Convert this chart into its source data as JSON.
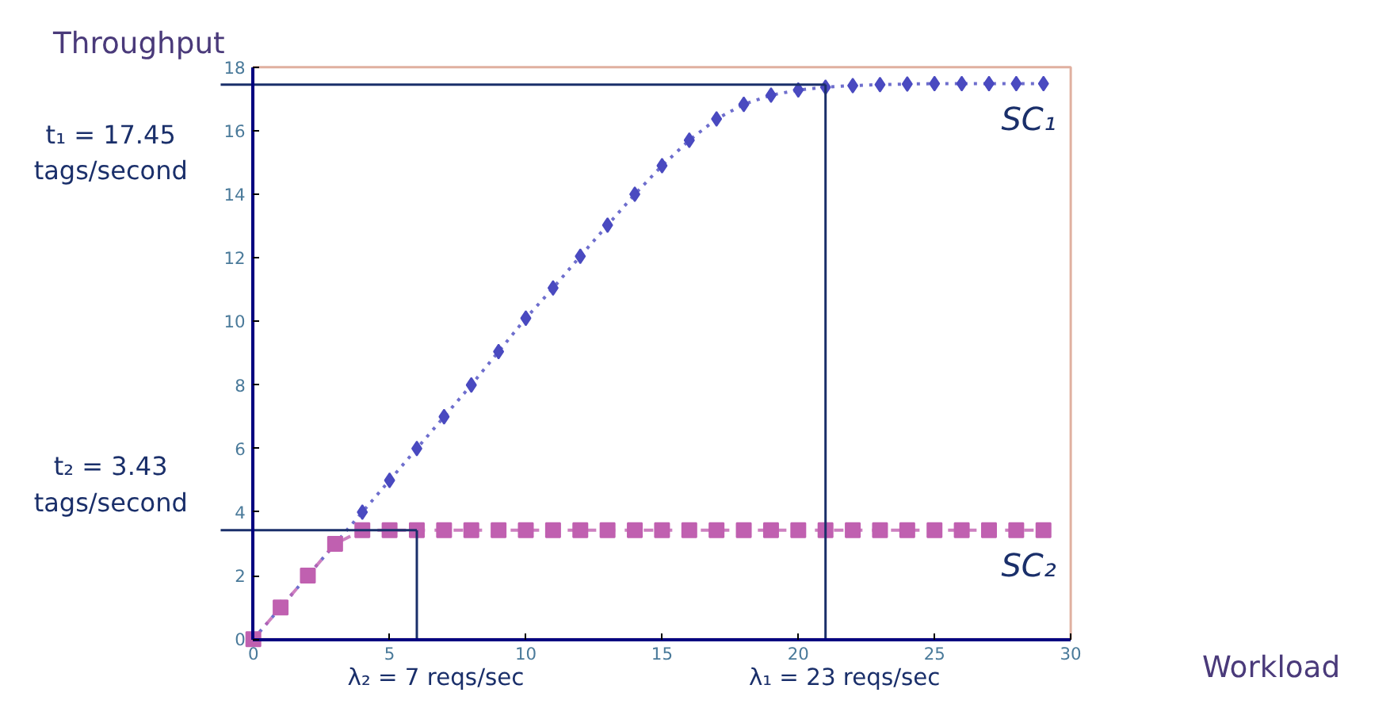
{
  "chart_data": {
    "type": "line",
    "x": [
      0,
      1,
      2,
      3,
      4,
      5,
      6,
      7,
      8,
      9,
      10,
      11,
      12,
      13,
      14,
      15,
      16,
      17,
      18,
      19,
      20,
      21,
      22,
      23,
      24,
      25,
      26,
      27,
      28,
      29
    ],
    "series": [
      {
        "name": "SC₁",
        "color": "#4a4ac0",
        "marker": "diamond",
        "line_style": "dotted",
        "values": [
          0,
          1,
          2,
          3,
          4,
          5,
          6,
          7,
          8,
          9.05,
          10.1,
          11.05,
          12.05,
          13.03,
          14,
          14.9,
          15.7,
          16.37,
          16.83,
          17.12,
          17.28,
          17.37,
          17.42,
          17.45,
          17.47,
          17.48,
          17.48,
          17.48,
          17.48,
          17.48
        ]
      },
      {
        "name": "SC₂",
        "color": "#c060b0",
        "marker": "square",
        "line_style": "dashed",
        "values": [
          0,
          1,
          2,
          3,
          3.43,
          3.43,
          3.43,
          3.43,
          3.43,
          3.43,
          3.43,
          3.43,
          3.43,
          3.43,
          3.43,
          3.43,
          3.43,
          3.43,
          3.43,
          3.43,
          3.43,
          3.43,
          3.43,
          3.43,
          3.43,
          3.43,
          3.43,
          3.43,
          3.43,
          3.43
        ]
      }
    ],
    "xlabel": "Workload",
    "ylabel": "Throughput",
    "xlim": [
      0,
      30
    ],
    "xticks": [
      0,
      5,
      10,
      15,
      20,
      25,
      30
    ],
    "ylim": [
      0,
      18
    ],
    "yticks": [
      0,
      2,
      4,
      6,
      8,
      10,
      12,
      14,
      16,
      18
    ],
    "ref_lines": [
      {
        "axis": "y",
        "value": 17.45,
        "label": "t₁ = 17.45\ntags/second",
        "color": "#1a2f6a"
      },
      {
        "axis": "x",
        "value": 21,
        "color": "#1a2f6a"
      },
      {
        "axis": "y",
        "value": 3.43,
        "label": "t₂ = 3.43\ntags/second",
        "color": "#1a2f6a"
      },
      {
        "axis": "x",
        "value": 6,
        "color": "#1a2f6a"
      }
    ],
    "annotations": [
      {
        "text": "λ₂ = 7 reqs/sec",
        "x": 6,
        "y": 0
      },
      {
        "text": "λ₁ = 23 reqs/sec",
        "x": 21,
        "y": 0
      }
    ],
    "grid": false
  }
}
